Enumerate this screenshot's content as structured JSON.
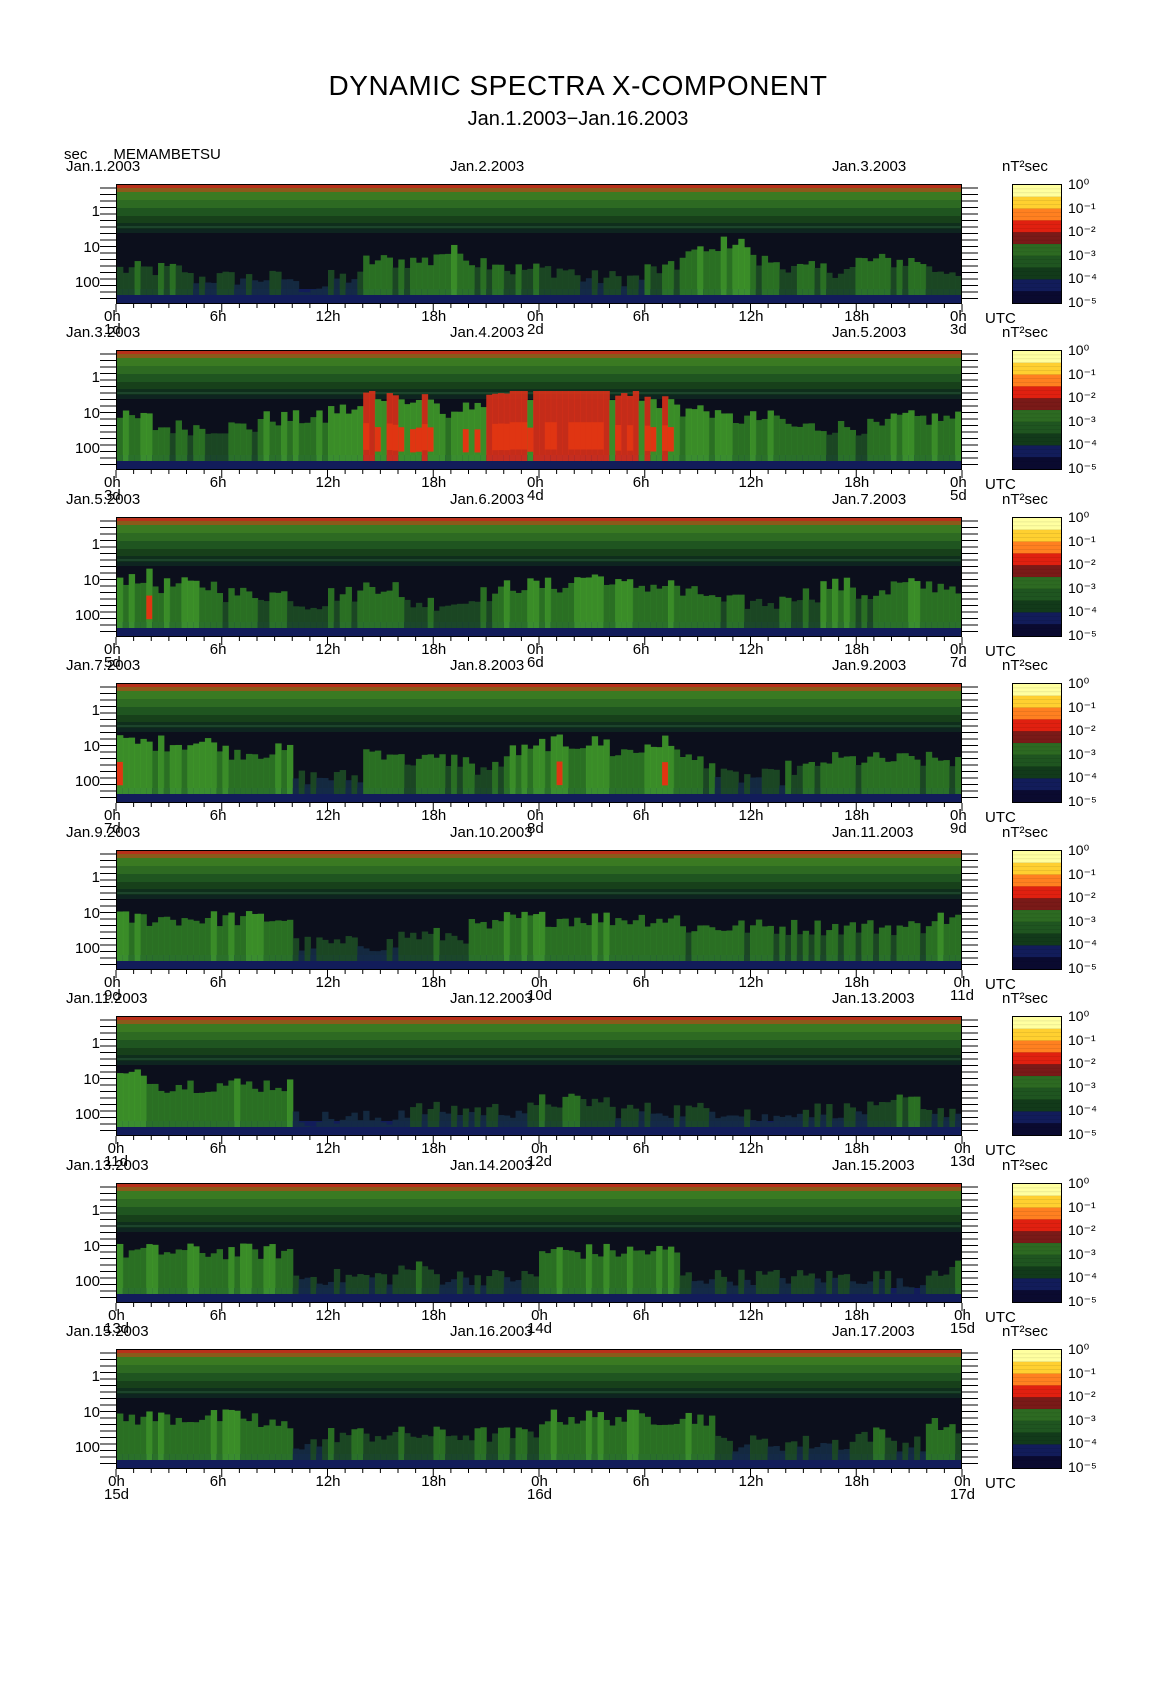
{
  "title": "DYNAMIC SPECTRA X-COMPONENT",
  "subtitle": "Jan.1.2003−Jan.16.2003",
  "station": "MEMAMBETSU",
  "y_unit": "sec",
  "x_unit": "UTC",
  "colorbar_unit": "nT²sec",
  "colorbar_ticks": [
    "10⁰",
    "10⁻¹",
    "10⁻²",
    "10⁻³",
    "10⁻⁴",
    "10⁻⁵"
  ],
  "y_ticks": [
    "1",
    "10",
    "100"
  ],
  "x_ticks": [
    "0h",
    "6h",
    "12h",
    "18h",
    "0h",
    "6h",
    "12h",
    "18h",
    "0h"
  ],
  "colormap": [
    "#0a0a30",
    "#1a2b6e",
    "#0b3a1a",
    "#1f6a1f",
    "#3f9a2a",
    "#7f5a1a",
    "#e03010",
    "#ff7010",
    "#ffc020",
    "#ffff80"
  ],
  "chart_data": {
    "type": "heatmap",
    "x_axis": "time (UTC, hours)",
    "y_axis": "period (sec)",
    "ylim": [
      200,
      0.2
    ],
    "y_scale": "log",
    "color_scale": "log power nT²sec, 1e-5 to 1e0",
    "panels": [
      {
        "left_date": "Jan.1.2003",
        "mid_date": "Jan.2.2003",
        "right_date": "Jan.3.2003",
        "days": [
          "1d",
          "2d",
          "3d"
        ],
        "activity": [
          3,
          3,
          2,
          2,
          2,
          1,
          2,
          4,
          4,
          5,
          4,
          3,
          3,
          2,
          2,
          3,
          5,
          6,
          4,
          3,
          3,
          4,
          4,
          3
        ]
      },
      {
        "left_date": "Jan.3.2003",
        "mid_date": "Jan.4.2003",
        "right_date": "Jan.5.2003",
        "days": [
          "3d",
          "4d",
          "5d"
        ],
        "activity": [
          5,
          4,
          4,
          4,
          5,
          5,
          6,
          8,
          7,
          6,
          7,
          8,
          9,
          9,
          8,
          7,
          6,
          5,
          5,
          4,
          4,
          4,
          5,
          5
        ]
      },
      {
        "left_date": "Jan.5.2003",
        "mid_date": "Jan.6.2003",
        "right_date": "Jan.7.2003",
        "days": [
          "5d",
          "6d",
          "7d"
        ],
        "activity": [
          6,
          5,
          5,
          4,
          4,
          3,
          4,
          5,
          3,
          3,
          4,
          5,
          5,
          6,
          5,
          5,
          4,
          3,
          3,
          4,
          5,
          4,
          5,
          5
        ]
      },
      {
        "left_date": "Jan.7.2003",
        "mid_date": "Jan.8.2003",
        "right_date": "Jan.9.2003",
        "days": [
          "7d",
          "8d",
          "9d"
        ],
        "activity": [
          6,
          6,
          6,
          5,
          5,
          2,
          2,
          5,
          4,
          4,
          3,
          5,
          6,
          6,
          5,
          6,
          4,
          2,
          2,
          3,
          4,
          4,
          4,
          4
        ]
      },
      {
        "left_date": "Jan.9.2003",
        "mid_date": "Jan.10.2003",
        "right_date": "Jan.11.2003",
        "days": [
          "9d",
          "10d",
          "11d"
        ],
        "activity": [
          5,
          5,
          5,
          5,
          5,
          2,
          2,
          2,
          3,
          3,
          4,
          5,
          5,
          5,
          5,
          5,
          4,
          4,
          4,
          4,
          4,
          4,
          4,
          5
        ]
      },
      {
        "left_date": "Jan.11.2003",
        "mid_date": "Jan.12.2003",
        "right_date": "Jan.13.2003",
        "days": [
          "11d",
          "12d",
          "13d"
        ],
        "activity": [
          6,
          5,
          5,
          5,
          5,
          1,
          1,
          1,
          2,
          2,
          2,
          2,
          3,
          3,
          2,
          2,
          2,
          2,
          1,
          2,
          2,
          2,
          3,
          2
        ]
      },
      {
        "left_date": "Jan.13.2003",
        "mid_date": "Jan.14.2003",
        "right_date": "Jan.15.2003",
        "days": [
          "13d",
          "14d",
          "15d"
        ],
        "activity": [
          5,
          5,
          5,
          5,
          5,
          2,
          2,
          2,
          3,
          2,
          2,
          2,
          5,
          5,
          5,
          5,
          2,
          2,
          2,
          2,
          2,
          2,
          1,
          3
        ]
      },
      {
        "left_date": "Jan.15.2003",
        "mid_date": "Jan.16.2003",
        "right_date": "Jan.17.2003",
        "days": [
          "15d",
          "16d",
          "17d"
        ],
        "activity": [
          5,
          5,
          5,
          5,
          4,
          2,
          3,
          3,
          3,
          3,
          3,
          3,
          5,
          5,
          5,
          5,
          5,
          2,
          2,
          2,
          2,
          3,
          2,
          4
        ]
      }
    ]
  }
}
